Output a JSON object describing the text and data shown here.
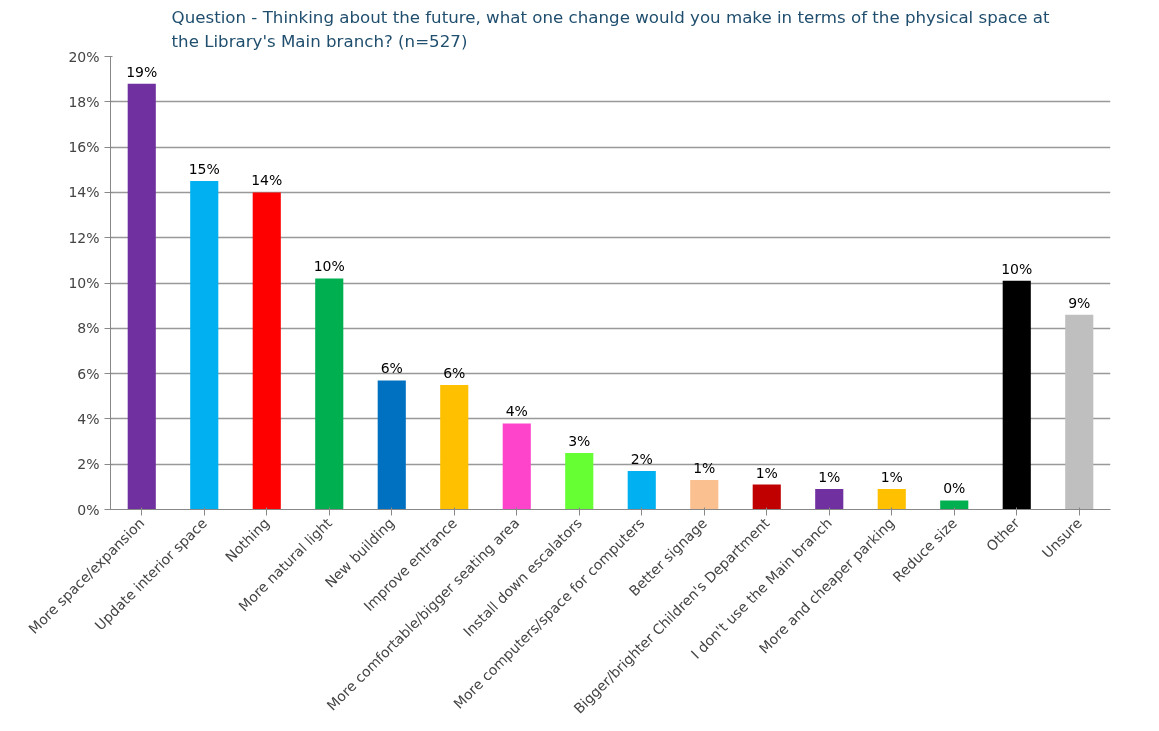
{
  "chart_data": {
    "type": "bar",
    "title": "Question - Thinking about the future, what one change would you make in terms of the physical space at the Library's Main branch? (n=527)",
    "categories": [
      "More space/expansion",
      "Update interior space",
      "Nothing",
      "More natural light",
      "New building",
      "Improve entrance",
      "More comfortable/bigger seating area",
      "Install down escalators",
      "More computers/space for computers",
      "Better signage",
      "Bigger/brighter Children's Department",
      "I don't use the Main branch",
      "More and cheaper parking",
      "Reduce size",
      "Other",
      "Unsure"
    ],
    "values": [
      18.8,
      14.5,
      14.0,
      10.2,
      5.7,
      5.5,
      3.8,
      2.5,
      1.7,
      1.3,
      1.1,
      0.9,
      0.9,
      0.4,
      10.1,
      8.6
    ],
    "colors": [
      "#7030a0",
      "#00b0f0",
      "#ff0000",
      "#00b050",
      "#0070c0",
      "#ffc000",
      "#ff44cc",
      "#66ff33",
      "#00b0f0",
      "#fac090",
      "#c00000",
      "#7030a0",
      "#ffc000",
      "#00b050",
      "#000000",
      "#bfbfbf"
    ],
    "value_labels": [
      "19%",
      "15%",
      "14%",
      "10%",
      "6%",
      "6%",
      "4%",
      "3%",
      "2%",
      "1%",
      "1%",
      "1%",
      "1%",
      "0%",
      "10%",
      "9%"
    ],
    "ylim": [
      0,
      20
    ],
    "yticks": [
      {
        "value": 0,
        "label": "0%"
      },
      {
        "value": 2,
        "label": "2%"
      },
      {
        "value": 4,
        "label": "4%"
      },
      {
        "value": 6,
        "label": "6%"
      },
      {
        "value": 8,
        "label": "8%"
      },
      {
        "value": 10,
        "label": "10%"
      },
      {
        "value": 12,
        "label": "12%"
      },
      {
        "value": 14,
        "label": "14%"
      },
      {
        "value": 16,
        "label": "16%"
      },
      {
        "value": 18,
        "label": "18%"
      },
      {
        "value": 20,
        "label": "20%"
      }
    ],
    "grid": "y"
  }
}
